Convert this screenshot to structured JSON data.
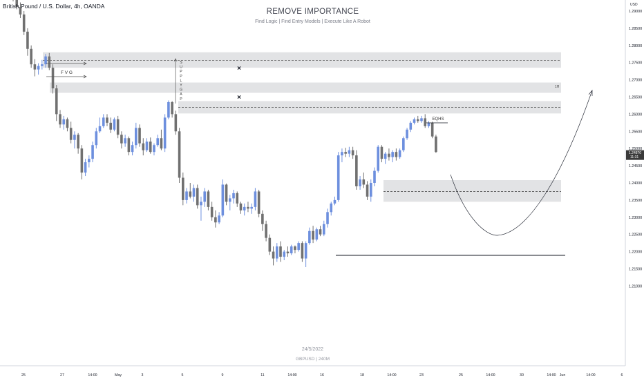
{
  "symbol_label": "British Pound / U.S. Dollar, 4h, OANDA",
  "title": "REMOVE IMPORTANCE",
  "subtitle": "Find Logic | Find Entry Models | Execute Like A Robot",
  "watermark_date": "24/5/2022",
  "watermark_symbol": "GBPUSD | 240M",
  "currency": "USD",
  "colors": {
    "bull": "#6d8fde",
    "bear": "#707070",
    "zone": "#e2e3e5",
    "price_tag": "#3a3a3a"
  },
  "chart_data": {
    "type": "candlestick",
    "ylim": [
      1.2075,
      1.2975
    ],
    "y_ticks": [
      "1.29000",
      "1.28500",
      "1.28000",
      "1.27500",
      "1.27000",
      "1.26500",
      "1.26000",
      "1.25500",
      "1.25000",
      "1.24500",
      "1.24000",
      "1.23500",
      "1.23000",
      "1.22500",
      "1.22000",
      "1.21500",
      "1.21000"
    ],
    "x_ticks": [
      "25",
      "27",
      "14:00",
      "May",
      "3",
      "5",
      "9",
      "11",
      "14:00",
      "16",
      "18",
      "14:00",
      "23",
      "25",
      "14:00",
      "30",
      "14:00",
      "Jun",
      "14:00",
      "6"
    ],
    "last_price": {
      "value": "1.24870",
      "countdown": "11:31"
    },
    "candles": [
      {
        "o": 1.2946,
        "h": 1.2958,
        "l": 1.2928,
        "c": 1.2938
      },
      {
        "o": 1.2938,
        "h": 1.2945,
        "l": 1.2905,
        "c": 1.2912
      },
      {
        "o": 1.2912,
        "h": 1.2925,
        "l": 1.288,
        "c": 1.289
      },
      {
        "o": 1.289,
        "h": 1.29,
        "l": 1.283,
        "c": 1.284
      },
      {
        "o": 1.284,
        "h": 1.285,
        "l": 1.277,
        "c": 1.279
      },
      {
        "o": 1.279,
        "h": 1.28,
        "l": 1.2735,
        "c": 1.2745
      },
      {
        "o": 1.2745,
        "h": 1.276,
        "l": 1.271,
        "c": 1.273
      },
      {
        "o": 1.273,
        "h": 1.2748,
        "l": 1.2715,
        "c": 1.274
      },
      {
        "o": 1.274,
        "h": 1.2758,
        "l": 1.273,
        "c": 1.2745
      },
      {
        "o": 1.2745,
        "h": 1.2775,
        "l": 1.2735,
        "c": 1.2768
      },
      {
        "o": 1.2768,
        "h": 1.2778,
        "l": 1.2728,
        "c": 1.2735
      },
      {
        "o": 1.2735,
        "h": 1.2745,
        "l": 1.266,
        "c": 1.2675
      },
      {
        "o": 1.2675,
        "h": 1.2685,
        "l": 1.258,
        "c": 1.26
      },
      {
        "o": 1.26,
        "h": 1.2612,
        "l": 1.256,
        "c": 1.257
      },
      {
        "o": 1.257,
        "h": 1.2595,
        "l": 1.2555,
        "c": 1.2585
      },
      {
        "o": 1.2585,
        "h": 1.259,
        "l": 1.255,
        "c": 1.256
      },
      {
        "o": 1.256,
        "h": 1.2578,
        "l": 1.2515,
        "c": 1.2525
      },
      {
        "o": 1.2525,
        "h": 1.255,
        "l": 1.25,
        "c": 1.254
      },
      {
        "o": 1.254,
        "h": 1.2545,
        "l": 1.2485,
        "c": 1.25
      },
      {
        "o": 1.25,
        "h": 1.251,
        "l": 1.241,
        "c": 1.243
      },
      {
        "o": 1.243,
        "h": 1.247,
        "l": 1.242,
        "c": 1.246
      },
      {
        "o": 1.246,
        "h": 1.248,
        "l": 1.2445,
        "c": 1.247
      },
      {
        "o": 1.247,
        "h": 1.252,
        "l": 1.246,
        "c": 1.251
      },
      {
        "o": 1.251,
        "h": 1.256,
        "l": 1.25,
        "c": 1.255
      },
      {
        "o": 1.255,
        "h": 1.259,
        "l": 1.2545,
        "c": 1.2565
      },
      {
        "o": 1.2565,
        "h": 1.26,
        "l": 1.256,
        "c": 1.259
      },
      {
        "o": 1.259,
        "h": 1.26,
        "l": 1.2565,
        "c": 1.2575
      },
      {
        "o": 1.2575,
        "h": 1.259,
        "l": 1.2545,
        "c": 1.2555
      },
      {
        "o": 1.2555,
        "h": 1.259,
        "l": 1.255,
        "c": 1.2585
      },
      {
        "o": 1.2585,
        "h": 1.2595,
        "l": 1.253,
        "c": 1.254
      },
      {
        "o": 1.254,
        "h": 1.255,
        "l": 1.25,
        "c": 1.2515
      },
      {
        "o": 1.2515,
        "h": 1.254,
        "l": 1.2505,
        "c": 1.253
      },
      {
        "o": 1.253,
        "h": 1.2535,
        "l": 1.248,
        "c": 1.249
      },
      {
        "o": 1.249,
        "h": 1.252,
        "l": 1.248,
        "c": 1.251
      },
      {
        "o": 1.251,
        "h": 1.2575,
        "l": 1.25,
        "c": 1.256
      },
      {
        "o": 1.256,
        "h": 1.257,
        "l": 1.2505,
        "c": 1.2515
      },
      {
        "o": 1.2515,
        "h": 1.253,
        "l": 1.248,
        "c": 1.2495
      },
      {
        "o": 1.2495,
        "h": 1.253,
        "l": 1.249,
        "c": 1.252
      },
      {
        "o": 1.252,
        "h": 1.2532,
        "l": 1.2485,
        "c": 1.249
      },
      {
        "o": 1.249,
        "h": 1.2515,
        "l": 1.248,
        "c": 1.251
      },
      {
        "o": 1.251,
        "h": 1.254,
        "l": 1.2505,
        "c": 1.253
      },
      {
        "o": 1.253,
        "h": 1.2555,
        "l": 1.2495,
        "c": 1.25
      },
      {
        "o": 1.25,
        "h": 1.26,
        "l": 1.249,
        "c": 1.259
      },
      {
        "o": 1.259,
        "h": 1.264,
        "l": 1.2585,
        "c": 1.2635
      },
      {
        "o": 1.2635,
        "h": 1.2638,
        "l": 1.259,
        "c": 1.26
      },
      {
        "o": 1.26,
        "h": 1.261,
        "l": 1.254,
        "c": 1.255
      },
      {
        "o": 1.255,
        "h": 1.256,
        "l": 1.24,
        "c": 1.2415
      },
      {
        "o": 1.2415,
        "h": 1.243,
        "l": 1.2335,
        "c": 1.235
      },
      {
        "o": 1.235,
        "h": 1.2385,
        "l": 1.234,
        "c": 1.2375
      },
      {
        "o": 1.2375,
        "h": 1.24,
        "l": 1.2355,
        "c": 1.236
      },
      {
        "o": 1.236,
        "h": 1.2395,
        "l": 1.2345,
        "c": 1.2385
      },
      {
        "o": 1.2385,
        "h": 1.2395,
        "l": 1.2325,
        "c": 1.2335
      },
      {
        "o": 1.2335,
        "h": 1.236,
        "l": 1.229,
        "c": 1.2345
      },
      {
        "o": 1.2345,
        "h": 1.2385,
        "l": 1.233,
        "c": 1.2375
      },
      {
        "o": 1.2375,
        "h": 1.238,
        "l": 1.232,
        "c": 1.233
      },
      {
        "o": 1.233,
        "h": 1.2345,
        "l": 1.229,
        "c": 1.23
      },
      {
        "o": 1.23,
        "h": 1.232,
        "l": 1.227,
        "c": 1.2285
      },
      {
        "o": 1.2285,
        "h": 1.2315,
        "l": 1.228,
        "c": 1.2305
      },
      {
        "o": 1.2305,
        "h": 1.241,
        "l": 1.23,
        "c": 1.2395
      },
      {
        "o": 1.2395,
        "h": 1.2398,
        "l": 1.2335,
        "c": 1.2345
      },
      {
        "o": 1.2345,
        "h": 1.2365,
        "l": 1.232,
        "c": 1.2355
      },
      {
        "o": 1.2355,
        "h": 1.238,
        "l": 1.234,
        "c": 1.237
      },
      {
        "o": 1.237,
        "h": 1.2375,
        "l": 1.233,
        "c": 1.234
      },
      {
        "o": 1.234,
        "h": 1.2345,
        "l": 1.231,
        "c": 1.232
      },
      {
        "o": 1.232,
        "h": 1.234,
        "l": 1.2305,
        "c": 1.233
      },
      {
        "o": 1.233,
        "h": 1.2345,
        "l": 1.2315,
        "c": 1.2325
      },
      {
        "o": 1.2325,
        "h": 1.234,
        "l": 1.231,
        "c": 1.233
      },
      {
        "o": 1.233,
        "h": 1.2385,
        "l": 1.232,
        "c": 1.2375
      },
      {
        "o": 1.2375,
        "h": 1.238,
        "l": 1.23,
        "c": 1.231
      },
      {
        "o": 1.231,
        "h": 1.232,
        "l": 1.226,
        "c": 1.228
      },
      {
        "o": 1.228,
        "h": 1.229,
        "l": 1.223,
        "c": 1.224
      },
      {
        "o": 1.224,
        "h": 1.225,
        "l": 1.219,
        "c": 1.22
      },
      {
        "o": 1.22,
        "h": 1.2215,
        "l": 1.216,
        "c": 1.218
      },
      {
        "o": 1.218,
        "h": 1.2225,
        "l": 1.217,
        "c": 1.2215
      },
      {
        "o": 1.2215,
        "h": 1.223,
        "l": 1.217,
        "c": 1.2185
      },
      {
        "o": 1.2185,
        "h": 1.2205,
        "l": 1.2175,
        "c": 1.22
      },
      {
        "o": 1.22,
        "h": 1.2215,
        "l": 1.2185,
        "c": 1.2195
      },
      {
        "o": 1.2195,
        "h": 1.222,
        "l": 1.219,
        "c": 1.2215
      },
      {
        "o": 1.2215,
        "h": 1.2218,
        "l": 1.2195,
        "c": 1.2205
      },
      {
        "o": 1.2205,
        "h": 1.223,
        "l": 1.22,
        "c": 1.2225
      },
      {
        "o": 1.2225,
        "h": 1.223,
        "l": 1.217,
        "c": 1.218
      },
      {
        "o": 1.218,
        "h": 1.223,
        "l": 1.2155,
        "c": 1.2225
      },
      {
        "o": 1.2225,
        "h": 1.227,
        "l": 1.222,
        "c": 1.226
      },
      {
        "o": 1.226,
        "h": 1.2275,
        "l": 1.2225,
        "c": 1.2235
      },
      {
        "o": 1.2235,
        "h": 1.227,
        "l": 1.223,
        "c": 1.2265
      },
      {
        "o": 1.2265,
        "h": 1.2275,
        "l": 1.2245,
        "c": 1.225
      },
      {
        "o": 1.225,
        "h": 1.229,
        "l": 1.2245,
        "c": 1.228
      },
      {
        "o": 1.228,
        "h": 1.2325,
        "l": 1.227,
        "c": 1.2315
      },
      {
        "o": 1.2315,
        "h": 1.2345,
        "l": 1.2305,
        "c": 1.234
      },
      {
        "o": 1.234,
        "h": 1.236,
        "l": 1.2335,
        "c": 1.235
      },
      {
        "o": 1.235,
        "h": 1.249,
        "l": 1.2345,
        "c": 1.248
      },
      {
        "o": 1.248,
        "h": 1.25,
        "l": 1.246,
        "c": 1.249
      },
      {
        "o": 1.249,
        "h": 1.2502,
        "l": 1.2475,
        "c": 1.2485
      },
      {
        "o": 1.2485,
        "h": 1.2505,
        "l": 1.2475,
        "c": 1.2495
      },
      {
        "o": 1.2495,
        "h": 1.2505,
        "l": 1.247,
        "c": 1.248
      },
      {
        "o": 1.248,
        "h": 1.2495,
        "l": 1.238,
        "c": 1.239
      },
      {
        "o": 1.239,
        "h": 1.242,
        "l": 1.238,
        "c": 1.241
      },
      {
        "o": 1.241,
        "h": 1.243,
        "l": 1.2385,
        "c": 1.2395
      },
      {
        "o": 1.2395,
        "h": 1.2405,
        "l": 1.235,
        "c": 1.236
      },
      {
        "o": 1.236,
        "h": 1.241,
        "l": 1.2345,
        "c": 1.24
      },
      {
        "o": 1.24,
        "h": 1.2445,
        "l": 1.239,
        "c": 1.2435
      },
      {
        "o": 1.2435,
        "h": 1.251,
        "l": 1.243,
        "c": 1.2505
      },
      {
        "o": 1.2505,
        "h": 1.251,
        "l": 1.246,
        "c": 1.247
      },
      {
        "o": 1.247,
        "h": 1.249,
        "l": 1.2455,
        "c": 1.2485
      },
      {
        "o": 1.2485,
        "h": 1.25,
        "l": 1.2465,
        "c": 1.2475
      },
      {
        "o": 1.2475,
        "h": 1.2495,
        "l": 1.246,
        "c": 1.249
      },
      {
        "o": 1.249,
        "h": 1.25,
        "l": 1.2465,
        "c": 1.2475
      },
      {
        "o": 1.2475,
        "h": 1.25,
        "l": 1.247,
        "c": 1.2495
      },
      {
        "o": 1.2495,
        "h": 1.2535,
        "l": 1.249,
        "c": 1.253
      },
      {
        "o": 1.253,
        "h": 1.256,
        "l": 1.2525,
        "c": 1.2555
      },
      {
        "o": 1.2555,
        "h": 1.258,
        "l": 1.2548,
        "c": 1.2575
      },
      {
        "o": 1.2575,
        "h": 1.259,
        "l": 1.257,
        "c": 1.2585
      },
      {
        "o": 1.2585,
        "h": 1.2595,
        "l": 1.2575,
        "c": 1.258
      },
      {
        "o": 1.258,
        "h": 1.2595,
        "l": 1.2575,
        "c": 1.2588
      },
      {
        "o": 1.2588,
        "h": 1.26,
        "l": 1.256,
        "c": 1.2565
      },
      {
        "o": 1.2565,
        "h": 1.258,
        "l": 1.256,
        "c": 1.2575
      },
      {
        "o": 1.2575,
        "h": 1.2578,
        "l": 1.253,
        "c": 1.2535
      },
      {
        "o": 1.2535,
        "h": 1.254,
        "l": 1.2487,
        "c": 1.249
      }
    ]
  },
  "annotations": {
    "fvg": "F V G",
    "supply_gap": "SUPPLY GAP",
    "tf_1h": "1H",
    "eqhs": "EQHS",
    "marker_x": "×"
  }
}
